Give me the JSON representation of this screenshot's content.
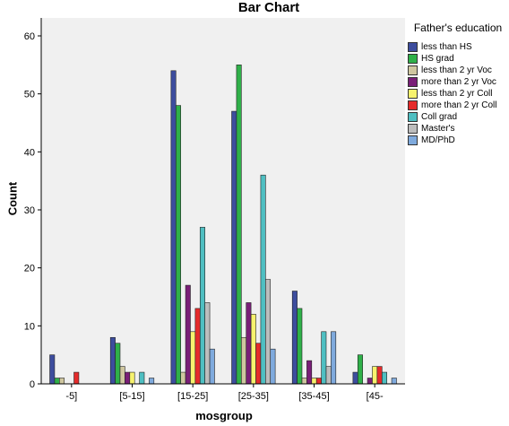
{
  "chart_data": {
    "type": "bar",
    "title": "Bar Chart",
    "xlabel": "mosgroup",
    "ylabel": "Count",
    "ylim": [
      0,
      60
    ],
    "yticks": [
      0,
      10,
      20,
      30,
      40,
      50,
      60
    ],
    "grid": false,
    "legend_title": "Father's education",
    "legend_position": "right",
    "categories": [
      "-5]",
      "[5-15]",
      "[15-25]",
      "[25-35]",
      "[35-45]",
      "[45-"
    ],
    "series": [
      {
        "name": "less than HS",
        "color": "#3d4d9e",
        "values": [
          5,
          8,
          54,
          47,
          16,
          2
        ]
      },
      {
        "name": "HS grad",
        "color": "#2fb049",
        "values": [
          1,
          7,
          48,
          55,
          13,
          5
        ]
      },
      {
        "name": "less than 2 yr Voc",
        "color": "#cfc7a0",
        "values": [
          1,
          3,
          2,
          8,
          1,
          0
        ]
      },
      {
        "name": "more than 2 yr Voc",
        "color": "#7a1f78",
        "values": [
          0,
          2,
          17,
          14,
          4,
          1
        ]
      },
      {
        "name": "less than 2 yr Coll",
        "color": "#f7f26e",
        "values": [
          0,
          2,
          9,
          12,
          1,
          3
        ]
      },
      {
        "name": "more than 2 yr Coll",
        "color": "#e52b2b",
        "values": [
          2,
          0,
          13,
          7,
          1,
          3
        ]
      },
      {
        "name": "Coll grad",
        "color": "#4fbfc2",
        "values": [
          0,
          2,
          27,
          36,
          9,
          2
        ]
      },
      {
        "name": "Master's",
        "color": "#bdbdbd",
        "values": [
          0,
          0,
          14,
          18,
          3,
          0
        ]
      },
      {
        "name": "MD/PhD",
        "color": "#7faadd",
        "values": [
          0,
          1,
          6,
          6,
          9,
          1
        ]
      }
    ]
  }
}
